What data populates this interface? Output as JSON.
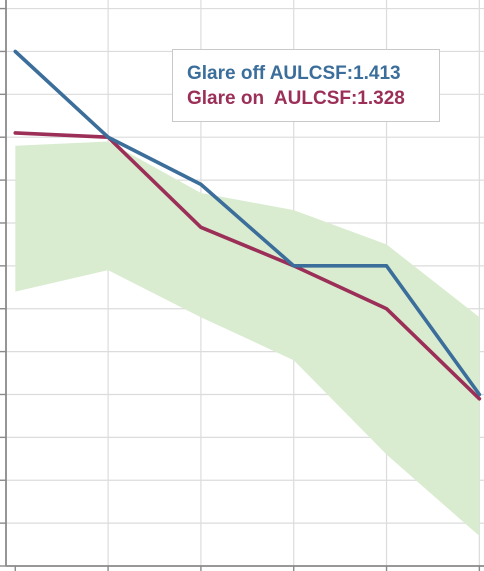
{
  "chart_data": {
    "type": "line",
    "x": [
      0,
      1,
      2,
      3,
      4,
      5
    ],
    "xlim": [
      -0.1,
      5.05
    ],
    "ylim": [
      -12,
      1.2
    ],
    "grid": true,
    "series": [
      {
        "name": "Glare off AULCSF:1.413",
        "color": "#3b6e9a",
        "values": [
          0,
          -2,
          -3.1,
          -5,
          -5,
          -8
        ]
      },
      {
        "name": "Glare on  AULCSF:1.328",
        "color": "#9b2f57",
        "values": [
          -1.9,
          -2,
          -4.1,
          -5,
          -6,
          -8.1
        ]
      }
    ],
    "normal_range": {
      "color": "#d9ecd0",
      "upper": [
        -2.2,
        -2.1,
        -3.3,
        -3.7,
        -4.5,
        -6.2
      ],
      "lower": [
        -5.6,
        -5.1,
        -6.2,
        -7.2,
        -9.4,
        -11.3
      ]
    }
  }
}
